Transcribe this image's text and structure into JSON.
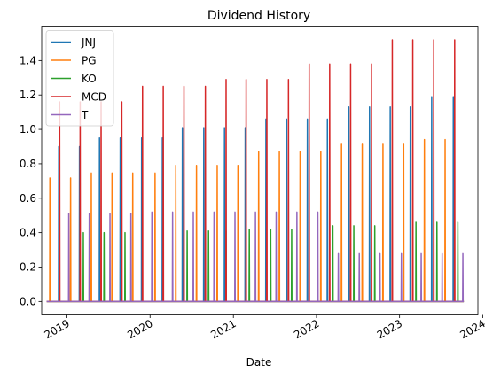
{
  "chart_data": {
    "type": "line",
    "title": "Dividend History",
    "xlabel": "Date",
    "ylabel": "",
    "ylim": [
      -0.078,
      1.6
    ],
    "xlim": [
      "2018-09-12",
      "2023-12-11"
    ],
    "x_ticks": [
      {
        "date": "2019-01-01",
        "label": "2019"
      },
      {
        "date": "2020-01-01",
        "label": "2020"
      },
      {
        "date": "2021-01-01",
        "label": "2021"
      },
      {
        "date": "2022-01-01",
        "label": "2022"
      },
      {
        "date": "2023-01-01",
        "label": "2023"
      },
      {
        "date": "2024-01-01",
        "label": "2024"
      }
    ],
    "y_ticks": [
      0.0,
      0.2,
      0.4,
      0.6,
      0.8,
      1.0,
      1.2,
      1.4
    ],
    "y_tick_labels": [
      "0.0",
      "0.2",
      "0.4",
      "0.6",
      "0.8",
      "1.0",
      "1.2",
      "1.4"
    ],
    "legend_position": "top-left",
    "grid": false,
    "series": [
      {
        "name": "JNJ",
        "color": "#1f77b4",
        "points": [
          {
            "date": "2018-11-26",
            "value": 0.9
          },
          {
            "date": "2019-02-25",
            "value": 0.9
          },
          {
            "date": "2019-05-24",
            "value": 0.95
          },
          {
            "date": "2019-08-23",
            "value": 0.95
          },
          {
            "date": "2019-11-25",
            "value": 0.95
          },
          {
            "date": "2020-02-24",
            "value": 0.95
          },
          {
            "date": "2020-05-22",
            "value": 1.01
          },
          {
            "date": "2020-08-24",
            "value": 1.01
          },
          {
            "date": "2020-11-23",
            "value": 1.01
          },
          {
            "date": "2021-02-22",
            "value": 1.01
          },
          {
            "date": "2021-05-24",
            "value": 1.06
          },
          {
            "date": "2021-08-23",
            "value": 1.06
          },
          {
            "date": "2021-11-22",
            "value": 1.06
          },
          {
            "date": "2022-02-18",
            "value": 1.06
          },
          {
            "date": "2022-05-23",
            "value": 1.13
          },
          {
            "date": "2022-08-22",
            "value": 1.13
          },
          {
            "date": "2022-11-21",
            "value": 1.13
          },
          {
            "date": "2023-02-17",
            "value": 1.13
          },
          {
            "date": "2023-05-22",
            "value": 1.19
          },
          {
            "date": "2023-08-25",
            "value": 1.19
          }
        ]
      },
      {
        "name": "PG",
        "color": "#ff7f0e",
        "points": [
          {
            "date": "2018-10-18",
            "value": 0.7172
          },
          {
            "date": "2019-01-17",
            "value": 0.7172
          },
          {
            "date": "2019-04-18",
            "value": 0.7459
          },
          {
            "date": "2019-07-18",
            "value": 0.7459
          },
          {
            "date": "2019-10-17",
            "value": 0.7459
          },
          {
            "date": "2020-01-23",
            "value": 0.7459
          },
          {
            "date": "2020-04-23",
            "value": 0.7908
          },
          {
            "date": "2020-07-23",
            "value": 0.7908
          },
          {
            "date": "2020-10-22",
            "value": 0.7908
          },
          {
            "date": "2021-01-21",
            "value": 0.7908
          },
          {
            "date": "2021-04-22",
            "value": 0.8698
          },
          {
            "date": "2021-07-22",
            "value": 0.8698
          },
          {
            "date": "2021-10-21",
            "value": 0.8698
          },
          {
            "date": "2022-01-20",
            "value": 0.8698
          },
          {
            "date": "2022-04-21",
            "value": 0.9133
          },
          {
            "date": "2022-07-21",
            "value": 0.9133
          },
          {
            "date": "2022-10-20",
            "value": 0.9133
          },
          {
            "date": "2023-01-19",
            "value": 0.9133
          },
          {
            "date": "2023-04-20",
            "value": 0.9407
          },
          {
            "date": "2023-07-20",
            "value": 0.9407
          }
        ]
      },
      {
        "name": "KO",
        "color": "#2ca02c",
        "points": [
          {
            "date": "2019-03-14",
            "value": 0.4
          },
          {
            "date": "2019-06-13",
            "value": 0.4
          },
          {
            "date": "2019-09-13",
            "value": 0.4
          },
          {
            "date": "2020-06-12",
            "value": 0.41
          },
          {
            "date": "2020-09-14",
            "value": 0.41
          },
          {
            "date": "2020-11-30",
            "value": 0.41
          },
          {
            "date": "2021-03-12",
            "value": 0.42
          },
          {
            "date": "2021-06-14",
            "value": 0.42
          },
          {
            "date": "2021-09-14",
            "value": 0.42
          },
          {
            "date": "2022-03-14",
            "value": 0.44
          },
          {
            "date": "2022-06-14",
            "value": 0.44
          },
          {
            "date": "2022-09-14",
            "value": 0.44
          },
          {
            "date": "2023-03-14",
            "value": 0.46
          },
          {
            "date": "2023-06-14",
            "value": 0.46
          },
          {
            "date": "2023-09-14",
            "value": 0.46
          }
        ]
      },
      {
        "name": "MCD",
        "color": "#d62728",
        "points": [
          {
            "date": "2018-11-30",
            "value": 1.16
          },
          {
            "date": "2019-02-28",
            "value": 1.16
          },
          {
            "date": "2019-05-31",
            "value": 1.16
          },
          {
            "date": "2019-08-30",
            "value": 1.16
          },
          {
            "date": "2019-11-29",
            "value": 1.25
          },
          {
            "date": "2020-02-28",
            "value": 1.25
          },
          {
            "date": "2020-05-29",
            "value": 1.25
          },
          {
            "date": "2020-08-31",
            "value": 1.25
          },
          {
            "date": "2020-11-30",
            "value": 1.29
          },
          {
            "date": "2021-02-26",
            "value": 1.29
          },
          {
            "date": "2021-05-28",
            "value": 1.29
          },
          {
            "date": "2021-08-31",
            "value": 1.29
          },
          {
            "date": "2021-11-30",
            "value": 1.38
          },
          {
            "date": "2022-02-28",
            "value": 1.38
          },
          {
            "date": "2022-05-31",
            "value": 1.38
          },
          {
            "date": "2022-08-31",
            "value": 1.38
          },
          {
            "date": "2022-11-30",
            "value": 1.52
          },
          {
            "date": "2023-02-28",
            "value": 1.52
          },
          {
            "date": "2023-05-31",
            "value": 1.52
          },
          {
            "date": "2023-08-31",
            "value": 1.52
          }
        ]
      },
      {
        "name": "T",
        "color": "#9467bd",
        "points": [
          {
            "date": "2019-01-09",
            "value": 0.51
          },
          {
            "date": "2019-04-09",
            "value": 0.51
          },
          {
            "date": "2019-07-09",
            "value": 0.51
          },
          {
            "date": "2019-10-09",
            "value": 0.51
          },
          {
            "date": "2020-01-09",
            "value": 0.52
          },
          {
            "date": "2020-04-09",
            "value": 0.52
          },
          {
            "date": "2020-07-09",
            "value": 0.52
          },
          {
            "date": "2020-10-08",
            "value": 0.52
          },
          {
            "date": "2021-01-08",
            "value": 0.52
          },
          {
            "date": "2021-04-08",
            "value": 0.52
          },
          {
            "date": "2021-07-08",
            "value": 0.52
          },
          {
            "date": "2021-10-07",
            "value": 0.52
          },
          {
            "date": "2022-01-07",
            "value": 0.52
          },
          {
            "date": "2022-04-07",
            "value": 0.2775
          },
          {
            "date": "2022-07-08",
            "value": 0.2775
          },
          {
            "date": "2022-10-07",
            "value": 0.2775
          },
          {
            "date": "2023-01-09",
            "value": 0.2775
          },
          {
            "date": "2023-04-06",
            "value": 0.2775
          },
          {
            "date": "2023-07-07",
            "value": 0.2775
          },
          {
            "date": "2023-10-06",
            "value": 0.2775
          }
        ]
      }
    ]
  }
}
